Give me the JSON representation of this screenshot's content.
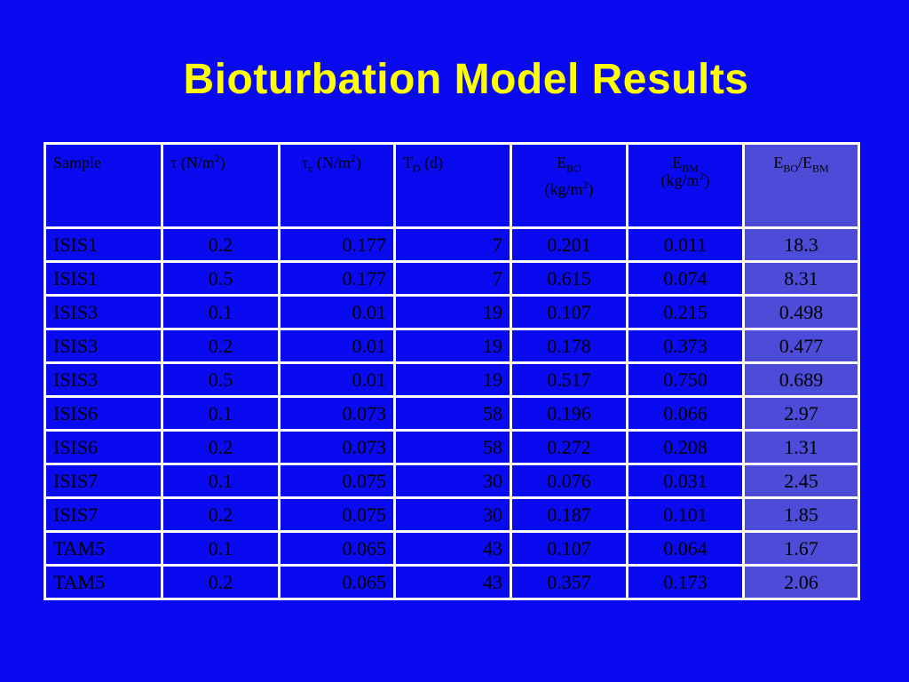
{
  "title": "Bioturbation Model Results",
  "headers": {
    "sample": "Sample",
    "tau_sym": "τ",
    "tau_unit": "(N/m",
    "tau_exp": "2",
    "tau_close": ")",
    "tauc_sym": "τ",
    "tauc_sub": "c",
    "tauc_unit": "(N/m",
    "tauc_exp": "2",
    "tauc_close": ")",
    "td_sym": "T",
    "td_sub": "D",
    "td_unit": "(d)",
    "ebo_sym": "E",
    "ebo_sub": "BO",
    "ebo_unit": "(kg/m",
    "ebo_exp": "2",
    "ebo_close": ")",
    "ebm_sym": "E",
    "ebm_sub": "BM",
    "ebm_unit": "(kg/m",
    "ebm_exp": "2",
    "ebm_close": ")",
    "ratio_e1": "E",
    "ratio_sub1": "BO",
    "ratio_slash": "/E",
    "ratio_sub2": "BM"
  },
  "rows": [
    {
      "sample": "ISIS1",
      "tau": "0.2",
      "tau_c": "0.177",
      "t_d": "7",
      "e_bo": "0.201",
      "e_bm": "0.011",
      "ratio": "18.3"
    },
    {
      "sample": "ISIS1",
      "tau": "0.5",
      "tau_c": "0.177",
      "t_d": "7",
      "e_bo": "0.615",
      "e_bm": "0.074",
      "ratio": "8.31"
    },
    {
      "sample": "ISIS3",
      "tau": "0.1",
      "tau_c": "0.01",
      "t_d": "19",
      "e_bo": "0.107",
      "e_bm": "0.215",
      "ratio": "0.498"
    },
    {
      "sample": "ISIS3",
      "tau": "0.2",
      "tau_c": "0.01",
      "t_d": "19",
      "e_bo": "0.178",
      "e_bm": "0.373",
      "ratio": "0.477"
    },
    {
      "sample": "ISIS3",
      "tau": "0.5",
      "tau_c": "0.01",
      "t_d": "19",
      "e_bo": "0.517",
      "e_bm": "0.750",
      "ratio": "0.689"
    },
    {
      "sample": "ISIS6",
      "tau": "0.1",
      "tau_c": "0.073",
      "t_d": "58",
      "e_bo": "0.196",
      "e_bm": "0.066",
      "ratio": "2.97"
    },
    {
      "sample": "ISIS6",
      "tau": "0.2",
      "tau_c": "0.073",
      "t_d": "58",
      "e_bo": "0.272",
      "e_bm": "0.208",
      "ratio": "1.31"
    },
    {
      "sample": "ISIS7",
      "tau": "0.1",
      "tau_c": "0.075",
      "t_d": "30",
      "e_bo": "0.076",
      "e_bm": "0.031",
      "ratio": "2.45"
    },
    {
      "sample": "ISIS7",
      "tau": "0.2",
      "tau_c": "0.075",
      "t_d": "30",
      "e_bo": "0.187",
      "e_bm": "0.101",
      "ratio": "1.85"
    },
    {
      "sample": "TAM5",
      "tau": "0.1",
      "tau_c": "0.065",
      "t_d": "43",
      "e_bo": "0.107",
      "e_bm": "0.064",
      "ratio": "1.67"
    },
    {
      "sample": "TAM5",
      "tau": "0.2",
      "tau_c": "0.065",
      "t_d": "43",
      "e_bo": "0.357",
      "e_bm": "0.173",
      "ratio": "2.06"
    }
  ],
  "colors": {
    "background": "#0a0af0",
    "title": "#ffff00",
    "last_column": "#4c4cd9",
    "grid": "#ffffff"
  }
}
